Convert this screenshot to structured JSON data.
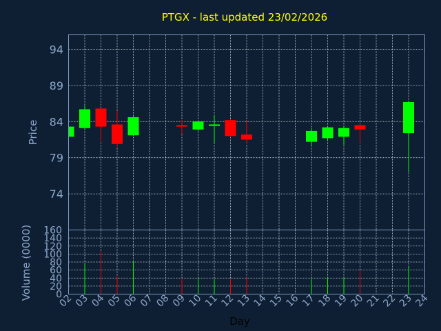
{
  "chart_data": {
    "type": "candlestick",
    "title": "PTGX - last updated 23/02/2026",
    "price_ylabel": "Price",
    "volume_ylabel": "Volume (0000)",
    "xlabel": "Day",
    "price_ylim": [
      69,
      96
    ],
    "price_ticks": [
      "94",
      "89",
      "84",
      "79",
      "74"
    ],
    "volume_ylim": [
      0,
      160
    ],
    "volume_ticks": [
      "160",
      "140",
      "120",
      "100",
      "80",
      "60",
      "40",
      "20",
      "0"
    ],
    "x_ticks": [
      "02",
      "03",
      "04",
      "05",
      "06",
      "07",
      "08",
      "09",
      "10",
      "11",
      "12",
      "13",
      "14",
      "15",
      "16",
      "17",
      "18",
      "19",
      "20",
      "21",
      "22",
      "23",
      "24"
    ],
    "up_color": "#00ff00",
    "down_color": "#ff0000",
    "grid": true,
    "candles": [
      {
        "day": "02",
        "open": 81.9,
        "close": 83.3,
        "high": 83.4,
        "low": 81.8
      },
      {
        "day": "03",
        "open": 83.1,
        "close": 85.7,
        "high": 86.2,
        "low": 82.9
      },
      {
        "day": "04",
        "open": 85.8,
        "close": 83.3,
        "high": 85.8,
        "low": 81.2
      },
      {
        "day": "05",
        "open": 83.6,
        "close": 80.9,
        "high": 85.5,
        "low": 80.5
      },
      {
        "day": "06",
        "open": 82.1,
        "close": 84.6,
        "high": 84.7,
        "low": 82.0
      },
      {
        "day": "09",
        "open": 83.5,
        "close": 83.3,
        "high": 84.2,
        "low": 82.3
      },
      {
        "day": "10",
        "open": 82.9,
        "close": 84.0,
        "high": 84.1,
        "low": 82.7
      },
      {
        "day": "11",
        "open": 83.4,
        "close": 83.6,
        "high": 84.9,
        "low": 81.1
      },
      {
        "day": "12",
        "open": 84.2,
        "close": 82.0,
        "high": 84.3,
        "low": 81.8
      },
      {
        "day": "13",
        "open": 82.2,
        "close": 81.5,
        "high": 84.1,
        "low": 80.9
      },
      {
        "day": "17",
        "open": 81.2,
        "close": 82.7,
        "high": 83.1,
        "low": 80.6
      },
      {
        "day": "18",
        "open": 81.7,
        "close": 83.2,
        "high": 83.3,
        "low": 81.5
      },
      {
        "day": "19",
        "open": 81.9,
        "close": 83.1,
        "high": 83.3,
        "low": 80.8
      },
      {
        "day": "20",
        "open": 83.5,
        "close": 82.9,
        "high": 83.7,
        "low": 81.0
      },
      {
        "day": "23",
        "open": 82.4,
        "close": 86.7,
        "high": 86.9,
        "low": 77.0
      }
    ],
    "volume": [
      {
        "day": "03",
        "value": 76
      },
      {
        "day": "04",
        "value": 108
      },
      {
        "day": "05",
        "value": 45
      },
      {
        "day": "06",
        "value": 83
      },
      {
        "day": "09",
        "value": 37
      },
      {
        "day": "10",
        "value": 41
      },
      {
        "day": "11",
        "value": 37
      },
      {
        "day": "12",
        "value": 36
      },
      {
        "day": "13",
        "value": 42
      },
      {
        "day": "17",
        "value": 38
      },
      {
        "day": "18",
        "value": 41
      },
      {
        "day": "19",
        "value": 41
      },
      {
        "day": "20",
        "value": 58
      },
      {
        "day": "23",
        "value": 68
      }
    ]
  }
}
